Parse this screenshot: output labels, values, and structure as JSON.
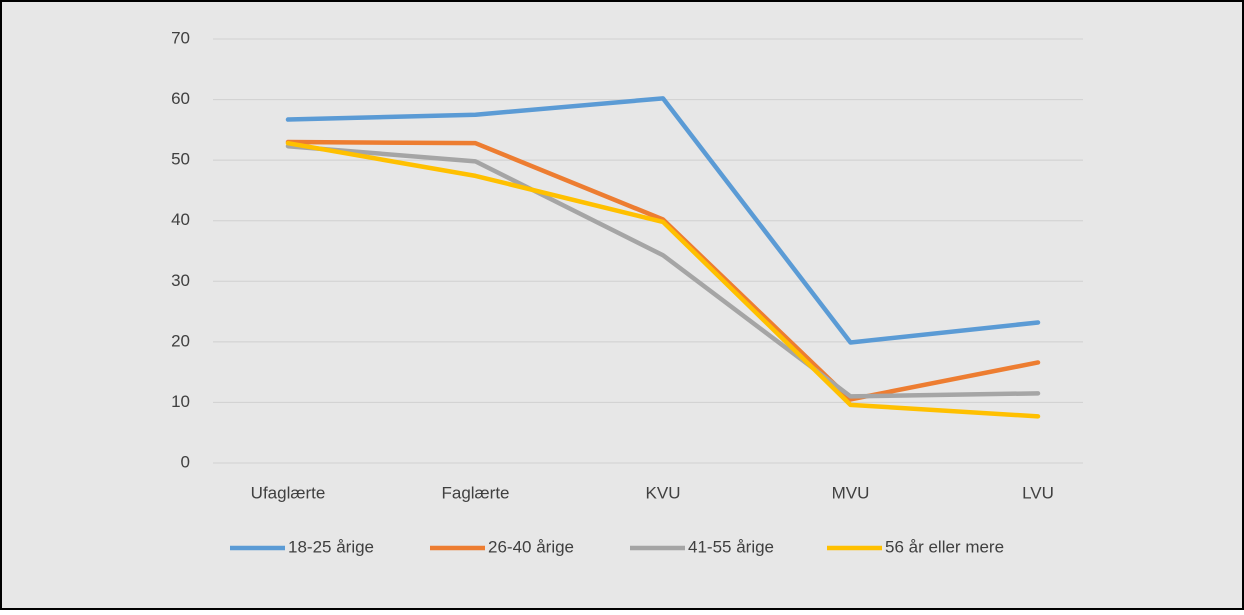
{
  "chart_data": {
    "type": "line",
    "categories": [
      "Ufaglærte",
      "Faglærte",
      "KVU",
      "MVU",
      "LVU"
    ],
    "series": [
      {
        "name": "18-25 årige",
        "color": "#5b9bd5",
        "values": [
          56.7,
          57.5,
          60.2,
          19.9,
          23.2
        ]
      },
      {
        "name": "26-40 årige",
        "color": "#ed7d31",
        "values": [
          53,
          52.8,
          40.2,
          10.5,
          16.6
        ]
      },
      {
        "name": "41-55 årige",
        "color": "#a5a5a5",
        "values": [
          52.3,
          49.8,
          34.3,
          11.0,
          11.5
        ]
      },
      {
        "name": "56 år eller mere",
        "color": "#ffc000",
        "values": [
          52.8,
          47.4,
          39.8,
          9.6,
          7.7
        ]
      }
    ],
    "ylim": [
      0,
      70
    ],
    "yticks": [
      0,
      10,
      20,
      30,
      40,
      50,
      60,
      70
    ],
    "grid": true,
    "legend": "bottom"
  }
}
